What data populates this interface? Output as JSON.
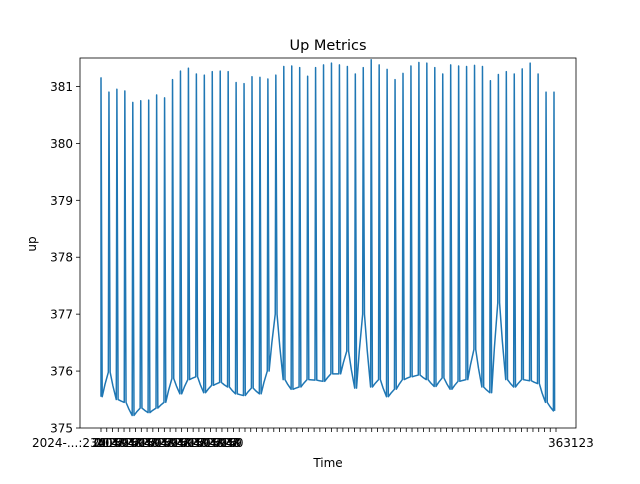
{
  "chart_data": {
    "type": "line",
    "title": "Up Metrics",
    "xlabel": "Time",
    "ylabel": "up",
    "ylim": [
      375,
      381.5
    ],
    "yticks": [
      375,
      376,
      377,
      378,
      379,
      380,
      381
    ],
    "xtick_label_visible_fragment": "2024-...:23",
    "grid": false,
    "legend": "none",
    "series": [
      {
        "color": "#1f77b4",
        "lows": [
          375.55,
          375.98,
          375.4,
          375.5,
          375.45,
          375.3,
          375.22,
          375.35,
          375.27,
          375.25,
          375.35,
          375.45,
          375.32,
          375.87,
          375.6,
          375.85,
          375.72,
          375.9,
          375.62,
          375.65,
          375.75,
          375.8,
          375.72,
          375.75,
          375.6,
          375.57,
          375.68,
          375.7,
          375.6,
          376.0,
          375.64,
          377.0,
          375.85,
          375.9,
          375.68,
          375.72,
          375.85,
          375.83,
          375.84,
          375.82,
          376.45,
          375.95,
          375.95,
          375.72,
          376.35,
          375.7,
          377.0,
          376.0,
          375.72,
          375.85,
          375.6,
          375.55,
          375.68,
          375.85,
          376.45,
          375.9,
          375.93,
          375.82,
          375.85,
          375.73,
          375.88,
          375.85,
          375.68,
          375.82,
          375.85,
          375.85,
          376.38,
          375.72,
          375.68,
          375.62,
          377.2,
          375.7,
          375.85,
          375.72,
          375.85,
          375.72,
          375.83,
          375.78,
          375.85,
          375.45,
          375.3
        ],
        "highs": [
          381.15,
          380.9,
          380.95,
          380.92,
          380.72,
          380.75,
          380.76,
          380.85,
          380.8,
          381.12,
          381.27,
          381.32,
          381.22,
          381.2,
          381.26,
          381.27,
          381.26,
          381.07,
          381.05,
          381.17,
          381.16,
          381.13,
          381.2,
          381.35,
          381.36,
          381.33,
          381.18,
          381.33,
          381.38,
          381.41,
          381.38,
          381.35,
          381.22,
          381.33,
          381.47,
          381.38,
          381.3,
          381.12,
          381.23,
          381.36,
          381.42,
          381.41,
          381.33,
          381.22,
          381.38,
          381.36,
          381.35,
          381.37,
          381.35,
          381.1,
          381.21,
          381.26,
          381.22,
          381.31,
          381.41,
          381.22,
          380.9
        ]
      }
    ]
  }
}
